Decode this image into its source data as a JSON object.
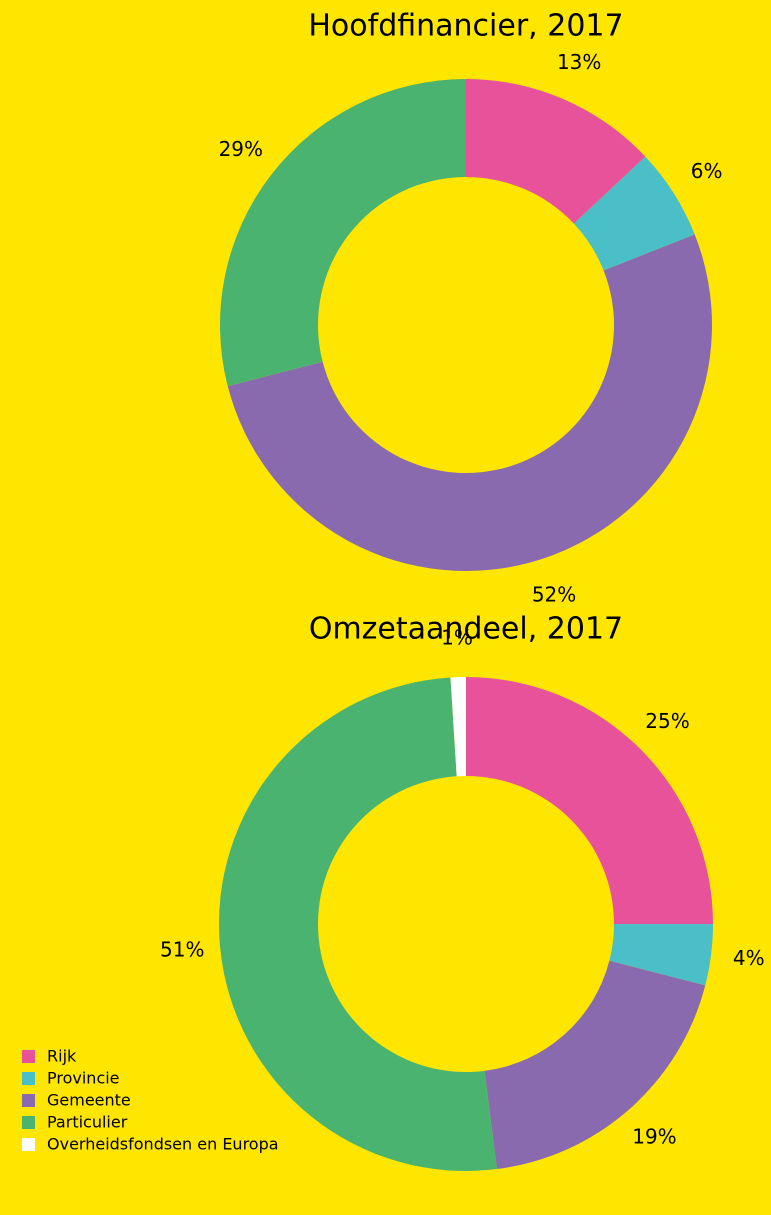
{
  "chart_data": [
    {
      "type": "donut",
      "title": "Hoofdfinancier, 2017",
      "categories": [
        "Rijk",
        "Provincie",
        "Gemeente",
        "Particulier"
      ],
      "values": [
        13,
        6,
        52,
        29
      ],
      "value_labels": [
        "13%",
        "6%",
        "52%",
        "29%"
      ],
      "colors": [
        "#e8529a",
        "#4bbfc7",
        "#8a6aae",
        "#4bb370"
      ]
    },
    {
      "type": "donut",
      "title": "Omzetaandeel, 2017",
      "categories": [
        "Rijk",
        "Provincie",
        "Gemeente",
        "Particulier",
        "Overheidsfondsen en Europa"
      ],
      "values": [
        25,
        4,
        19,
        51,
        1
      ],
      "value_labels": [
        "25%",
        "4%",
        "19%",
        "51%",
        "1%"
      ],
      "colors": [
        "#e8529a",
        "#4bbfc7",
        "#8a6aae",
        "#4bb370",
        "#ffffff"
      ],
      "legend": "bottom-left"
    }
  ]
}
